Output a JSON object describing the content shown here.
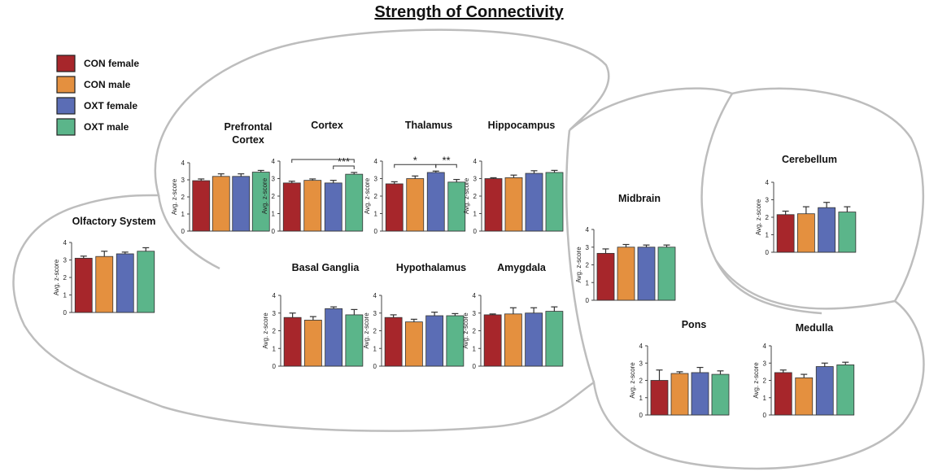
{
  "title": "Strength of Connectivity",
  "legend": [
    {
      "name": "CON female",
      "color": "#a7262b"
    },
    {
      "name": "CON male",
      "color": "#e4903f"
    },
    {
      "name": "OXT female",
      "color": "#5b6db5"
    },
    {
      "name": "OXT male",
      "color": "#5bb58a"
    }
  ],
  "chart_data": [
    {
      "type": "bar",
      "title": "Prefrontal Cortex",
      "ylabel": "Avg. z-score",
      "values": [
        2.95,
        3.2,
        3.2,
        3.45
      ],
      "errors": [
        0.1,
        0.15,
        0.15,
        0.1
      ],
      "ylim": [
        0,
        4
      ],
      "yticks": [
        0,
        1,
        2,
        3,
        4
      ]
    },
    {
      "type": "bar",
      "title": "Cortex",
      "ylabel": "Avg. z-score",
      "values": [
        2.75,
        2.9,
        2.75,
        3.25
      ],
      "errors": [
        0.1,
        0.08,
        0.15,
        0.1
      ],
      "ylim": [
        0,
        4
      ],
      "yticks": [
        0,
        1,
        2,
        3,
        4
      ],
      "annotations": [
        {
          "between": [
            0,
            3
          ]
        },
        {
          "text": "***",
          "between": [
            2,
            3
          ]
        }
      ]
    },
    {
      "type": "bar",
      "title": "Thalamus",
      "ylabel": "Avg. z-score",
      "values": [
        2.7,
        3.0,
        3.35,
        2.8
      ],
      "errors": [
        0.12,
        0.15,
        0.08,
        0.15
      ],
      "ylim": [
        0,
        4
      ],
      "yticks": [
        0,
        1,
        2,
        3,
        4
      ],
      "annotations": [
        {
          "text": "*",
          "between": [
            0,
            2
          ]
        },
        {
          "text": "**",
          "between": [
            2,
            3
          ]
        }
      ]
    },
    {
      "type": "bar",
      "title": "Hippocampus",
      "ylabel": "Avg. z-score",
      "values": [
        3.0,
        3.05,
        3.3,
        3.35
      ],
      "errors": [
        0.05,
        0.15,
        0.15,
        0.12
      ],
      "ylim": [
        0,
        4
      ],
      "yticks": [
        0,
        1,
        2,
        3,
        4
      ]
    },
    {
      "type": "bar",
      "title": "Olfactory System",
      "ylabel": "Avg. z-score",
      "values": [
        3.1,
        3.2,
        3.35,
        3.5
      ],
      "errors": [
        0.12,
        0.3,
        0.1,
        0.2
      ],
      "ylim": [
        0,
        4
      ],
      "yticks": [
        0,
        1,
        2,
        3,
        4
      ]
    },
    {
      "type": "bar",
      "title": "Basal Ganglia",
      "ylabel": "Avg. z-score",
      "values": [
        2.75,
        2.6,
        3.25,
        2.9
      ],
      "errors": [
        0.25,
        0.2,
        0.1,
        0.3
      ],
      "ylim": [
        0,
        4
      ],
      "yticks": [
        0,
        1,
        2,
        3,
        4
      ]
    },
    {
      "type": "bar",
      "title": "Hypothalamus",
      "ylabel": "Avg. z-score",
      "values": [
        2.75,
        2.5,
        2.85,
        2.85
      ],
      "errors": [
        0.15,
        0.15,
        0.2,
        0.12
      ],
      "ylim": [
        0,
        4
      ],
      "yticks": [
        0,
        1,
        2,
        3,
        4
      ]
    },
    {
      "type": "bar",
      "title": "Amygdala",
      "ylabel": "Avg. z-score",
      "values": [
        2.9,
        2.95,
        3.0,
        3.1
      ],
      "errors": [
        0.05,
        0.35,
        0.3,
        0.25
      ],
      "ylim": [
        0,
        4
      ],
      "yticks": [
        0,
        1,
        2,
        3,
        4
      ]
    },
    {
      "type": "bar",
      "title": "Midbrain",
      "ylabel": "Avg. z-score",
      "values": [
        2.65,
        3.0,
        3.0,
        3.0
      ],
      "errors": [
        0.25,
        0.15,
        0.12,
        0.12
      ],
      "ylim": [
        0,
        4
      ],
      "yticks": [
        0,
        1,
        2,
        3,
        4
      ]
    },
    {
      "type": "bar",
      "title": "Cerebellum",
      "ylabel": "Avg. z-score",
      "values": [
        2.15,
        2.2,
        2.55,
        2.3
      ],
      "errors": [
        0.2,
        0.4,
        0.3,
        0.3
      ],
      "ylim": [
        0,
        4
      ],
      "yticks": [
        0,
        1,
        2,
        3,
        4
      ]
    },
    {
      "type": "bar",
      "title": "Pons",
      "ylabel": "Avg. z-score",
      "values": [
        2.0,
        2.4,
        2.45,
        2.35
      ],
      "errors": [
        0.6,
        0.1,
        0.3,
        0.2
      ],
      "ylim": [
        0,
        4
      ],
      "yticks": [
        0,
        1,
        2,
        3,
        4
      ]
    },
    {
      "type": "bar",
      "title": "Medulla",
      "ylabel": "Avg. z-score",
      "values": [
        2.45,
        2.15,
        2.8,
        2.9
      ],
      "errors": [
        0.15,
        0.2,
        0.2,
        0.15
      ],
      "ylim": [
        0,
        4
      ],
      "yticks": [
        0,
        1,
        2,
        3,
        4
      ]
    }
  ]
}
